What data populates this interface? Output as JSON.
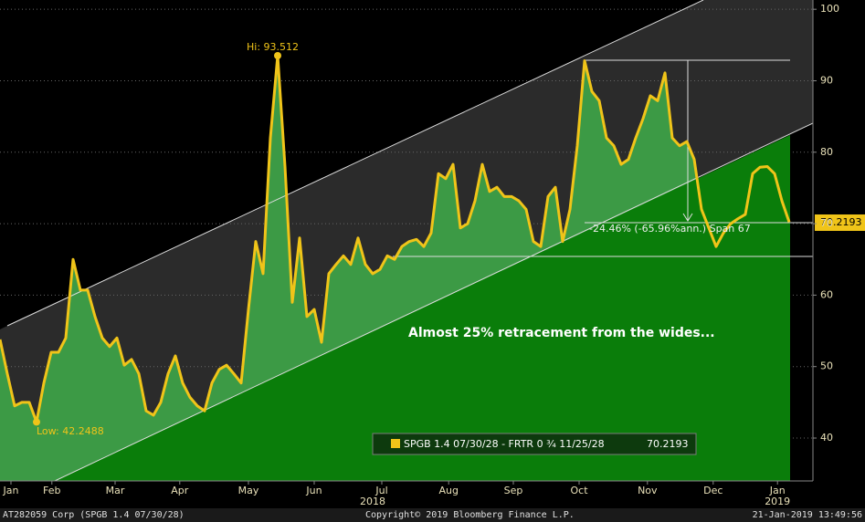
{
  "chart_data": {
    "type": "line",
    "series": [
      {
        "name": "SPGB 1.4 07/30/28 - FRTR 0 ¾ 11/25/28",
        "color": "#f0c419",
        "values": [
          53.8,
          49,
          44.5,
          45,
          45,
          42.2488,
          47.7,
          52,
          52,
          54,
          65,
          60.7,
          60.7,
          57,
          54,
          52.8,
          54,
          50.2,
          51,
          49,
          43.8,
          43.2,
          45,
          49,
          51.5,
          47.7,
          45.7,
          44.5,
          43.8,
          47.7,
          49.6,
          50.2,
          49,
          47.7,
          58,
          67.5,
          63,
          82,
          93.512,
          78,
          59,
          68,
          57,
          58,
          53.4,
          63,
          64.3,
          65.5,
          64.3,
          68,
          64.3,
          63,
          63.6,
          65.5,
          65,
          66.8,
          67.5,
          67.8,
          66.8,
          68.7,
          77,
          76.3,
          78.3,
          69.4,
          70,
          73.2,
          78.3,
          74.5,
          75.1,
          73.8,
          73.8,
          73.2,
          72,
          67.5,
          66.8,
          73.8,
          75.1,
          67.5,
          72,
          80.9,
          92.8,
          88.5,
          87.2,
          82,
          80.9,
          78.3,
          79,
          82,
          84.7,
          87.9,
          87.2,
          91.1,
          82,
          80.9,
          81.5,
          79,
          72,
          69.4,
          66.8,
          68.7,
          70,
          70.7,
          71.3,
          77,
          77.9,
          78,
          77,
          73.2,
          70.2193
        ]
      }
    ],
    "xlim": [
      0,
      111.25
    ],
    "xticks": [
      {
        "value": 1.5,
        "label": "Jan"
      },
      {
        "value": 7.1,
        "label": "Feb"
      },
      {
        "value": 15.75,
        "label": "Mar"
      },
      {
        "value": 24.6,
        "label": "Apr"
      },
      {
        "value": 34,
        "label": "May"
      },
      {
        "value": 43,
        "label": "Jun"
      },
      {
        "value": 52.25,
        "label": "Jul"
      },
      {
        "value": 61.4,
        "label": "Aug"
      },
      {
        "value": 70.25,
        "label": "Sep"
      },
      {
        "value": 79.25,
        "label": "Oct"
      },
      {
        "value": 88.6,
        "label": "Nov"
      },
      {
        "value": 97.6,
        "label": "Dec"
      },
      {
        "value": 106.4,
        "label": "Jan"
      }
    ],
    "year_ticks": [
      {
        "value": 51,
        "label": "2018"
      },
      {
        "value": 106.4,
        "label": "2019"
      }
    ],
    "ylim": [
      34,
      101.3
    ],
    "yticks": [
      40,
      50,
      60,
      70,
      80,
      90,
      100
    ],
    "grid": true,
    "annotations": {
      "high": "Hi: 93.512",
      "low": "Low: 42.2488",
      "span": "-24.46% (-65.96%ann.) Span 67",
      "comment": "Almost 25% retracement from the wides..."
    },
    "footer": {
      "left": "AT282059 Corp (SPGB 1.4 07/30/28)",
      "center": "Copyright© 2019 Bloomberg Finance L.P.",
      "right": "21-Jan-2019 13:49:56"
    }
  }
}
